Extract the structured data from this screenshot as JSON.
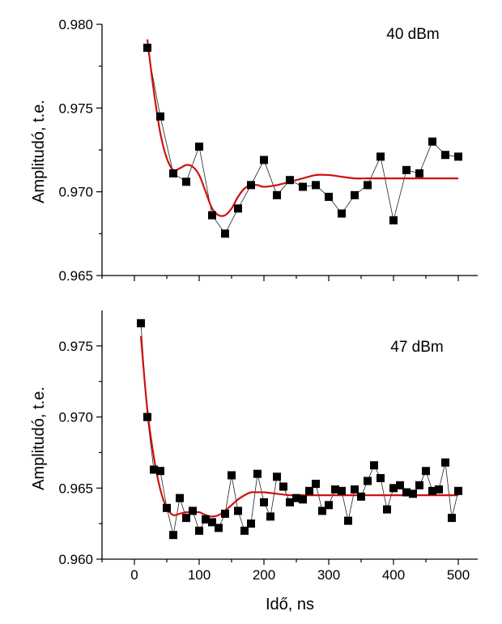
{
  "chart_data": [
    {
      "type": "scatter",
      "annotation": "40 dBm",
      "xlabel": "Idő, ns",
      "ylabel": "Amplitudó, t.e.",
      "xlim": [
        -50,
        530
      ],
      "ylim": [
        0.965,
        0.98
      ],
      "xticks": [
        0,
        100,
        200,
        300,
        400,
        500
      ],
      "yticks": [
        0.965,
        0.97,
        0.975,
        0.98
      ],
      "ytick_labels": [
        "0.965",
        "0.970",
        "0.975",
        "0.980"
      ],
      "show_x_tick_labels": false,
      "colors": {
        "points": "#000000",
        "connector": "#222222",
        "fit": "#d01010"
      },
      "points": {
        "x": [
          20,
          40,
          60,
          80,
          100,
          120,
          140,
          160,
          180,
          200,
          220,
          240,
          260,
          280,
          300,
          320,
          340,
          360,
          380,
          400,
          420,
          440,
          460,
          480,
          500
        ],
        "y": [
          0.9786,
          0.9745,
          0.9711,
          0.9706,
          0.9727,
          0.9686,
          0.9675,
          0.969,
          0.9704,
          0.9719,
          0.9698,
          0.9707,
          0.9703,
          0.9704,
          0.9697,
          0.9687,
          0.9698,
          0.9704,
          0.9721,
          0.9683,
          0.9713,
          0.9711,
          0.973,
          0.9722,
          0.9721
        ]
      },
      "fit": {
        "x": [
          20,
          30,
          40,
          50,
          60,
          70,
          80,
          90,
          100,
          110,
          120,
          130,
          140,
          150,
          160,
          170,
          180,
          190,
          200,
          220,
          240,
          260,
          280,
          300,
          320,
          340,
          360,
          380,
          400,
          450,
          500
        ],
        "y": [
          0.9791,
          0.976,
          0.9735,
          0.972,
          0.9713,
          0.9714,
          0.9716,
          0.9715,
          0.971,
          0.97,
          0.969,
          0.9686,
          0.9686,
          0.969,
          0.9697,
          0.9702,
          0.9704,
          0.9704,
          0.9703,
          0.9704,
          0.9706,
          0.9708,
          0.971,
          0.971,
          0.9709,
          0.9708,
          0.9708,
          0.9708,
          0.9708,
          0.9708,
          0.9708
        ]
      }
    },
    {
      "type": "scatter",
      "annotation": "47 dBm",
      "xlabel": "Idő, ns",
      "ylabel": "Amplitudó, t.e.",
      "xlim": [
        -50,
        530
      ],
      "ylim": [
        0.96,
        0.9775
      ],
      "xticks": [
        0,
        100,
        200,
        300,
        400,
        500
      ],
      "xtick_labels": [
        "0",
        "100",
        "200",
        "300",
        "400",
        "500"
      ],
      "yticks": [
        0.96,
        0.965,
        0.97,
        0.975
      ],
      "ytick_labels": [
        "0.960",
        "0.965",
        "0.970",
        "0.975"
      ],
      "show_x_tick_labels": true,
      "colors": {
        "points": "#000000",
        "connector": "#222222",
        "fit": "#d01010"
      },
      "points": {
        "x": [
          10,
          20,
          30,
          40,
          50,
          60,
          70,
          80,
          90,
          100,
          110,
          120,
          130,
          140,
          150,
          160,
          170,
          180,
          190,
          200,
          210,
          220,
          230,
          240,
          250,
          260,
          270,
          280,
          290,
          300,
          310,
          320,
          330,
          340,
          350,
          360,
          370,
          380,
          390,
          400,
          410,
          420,
          430,
          440,
          450,
          460,
          470,
          480,
          490,
          500
        ],
        "y": [
          0.9766,
          0.97,
          0.9663,
          0.9662,
          0.9636,
          0.9617,
          0.9643,
          0.9629,
          0.9634,
          0.962,
          0.9628,
          0.9626,
          0.9622,
          0.9632,
          0.9659,
          0.9634,
          0.962,
          0.9625,
          0.966,
          0.964,
          0.963,
          0.9658,
          0.9651,
          0.964,
          0.9643,
          0.9642,
          0.9648,
          0.9653,
          0.9634,
          0.9638,
          0.9649,
          0.9648,
          0.9627,
          0.9649,
          0.9644,
          0.9655,
          0.9666,
          0.9657,
          0.9635,
          0.965,
          0.9652,
          0.9647,
          0.9646,
          0.9652,
          0.9662,
          0.9648,
          0.9649,
          0.9668,
          0.9629,
          0.9648
        ]
      },
      "fit": {
        "x": [
          10,
          20,
          30,
          40,
          50,
          60,
          70,
          80,
          90,
          100,
          110,
          120,
          130,
          140,
          150,
          160,
          170,
          180,
          190,
          200,
          220,
          240,
          260,
          280,
          300,
          350,
          400,
          450,
          500
        ],
        "y": [
          0.9757,
          0.9705,
          0.9672,
          0.9649,
          0.9636,
          0.9631,
          0.9632,
          0.9633,
          0.9633,
          0.9633,
          0.9631,
          0.963,
          0.9631,
          0.9634,
          0.9638,
          0.9642,
          0.9645,
          0.9647,
          0.9647,
          0.9647,
          0.9646,
          0.9645,
          0.9645,
          0.9645,
          0.9645,
          0.9645,
          0.9645,
          0.9645,
          0.9645
        ]
      }
    }
  ]
}
